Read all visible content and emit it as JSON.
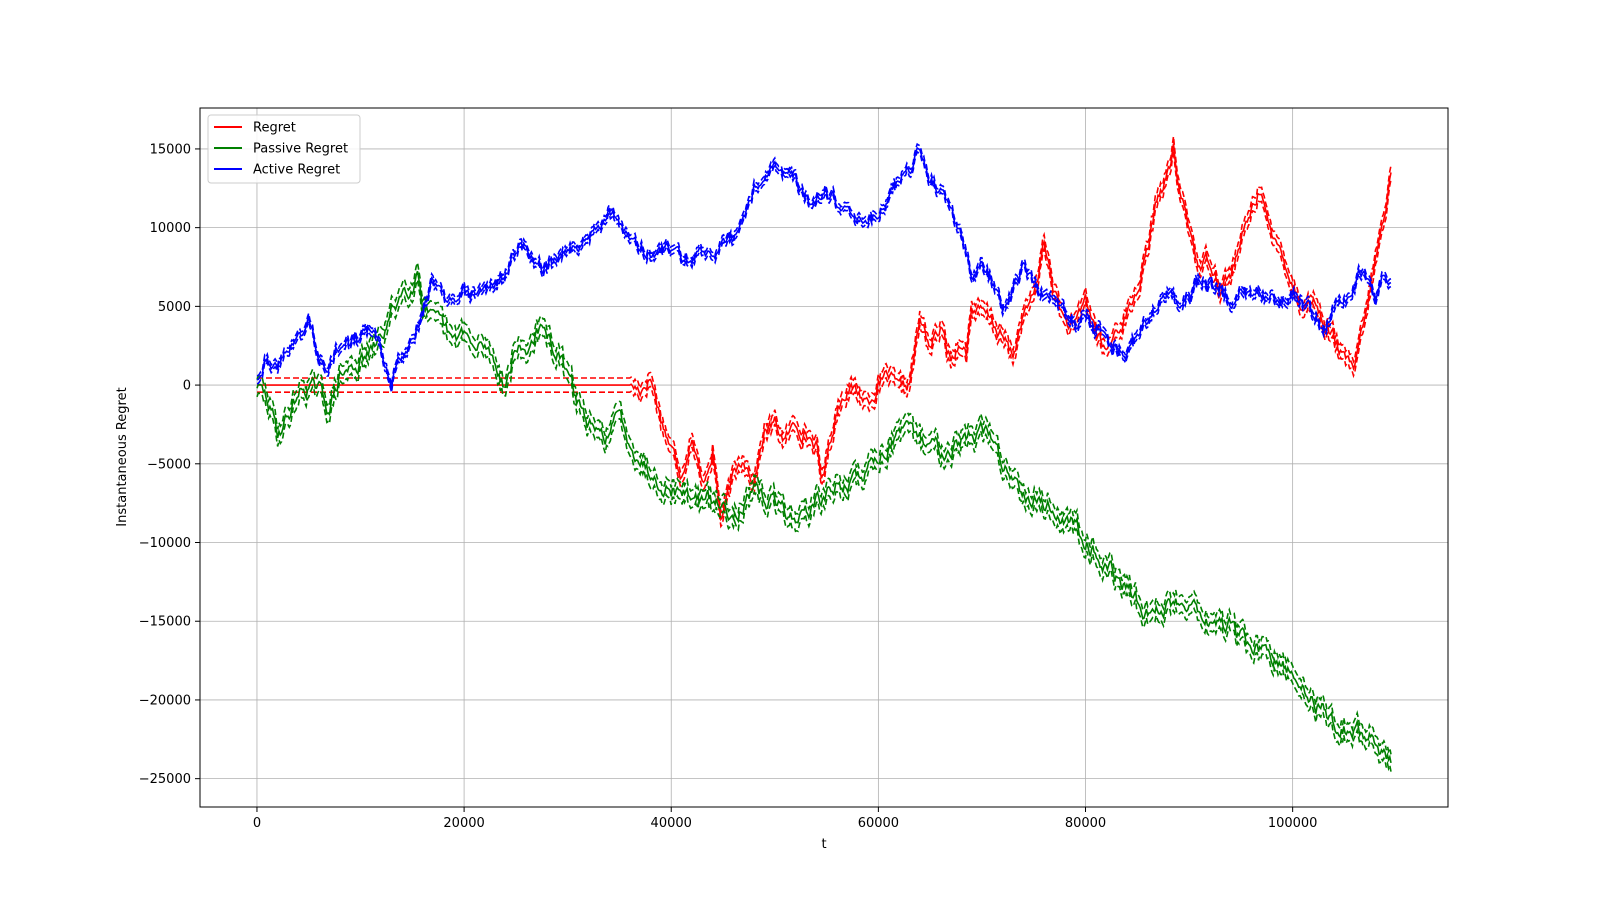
{
  "chart_data": {
    "type": "line",
    "title": "",
    "xlabel": "t",
    "ylabel": "Instantaneous Regret",
    "xlim": [
      -5500,
      115000
    ],
    "ylim": [
      -26800,
      17600
    ],
    "xticks": [
      0,
      20000,
      40000,
      60000,
      80000,
      100000
    ],
    "xtick_labels": [
      "0",
      "20000",
      "40000",
      "60000",
      "80000",
      "100000"
    ],
    "yticks": [
      15000,
      10000,
      5000,
      0,
      -5000,
      -10000,
      -15000,
      -20000,
      -25000
    ],
    "ytick_labels": [
      "15000",
      "10000",
      "5000",
      "0",
      "−5000",
      "−10000",
      "−15000",
      "−20000",
      "−25000"
    ],
    "grid": true,
    "legend_position": "top-left",
    "band_style": "dashed bands around each series",
    "series": [
      {
        "name": "Regret",
        "color": "#ff0000",
        "band_width": 450,
        "x": [
          0,
          2000,
          5000,
          10000,
          15000,
          20000,
          25000,
          30000,
          36000,
          37000,
          38000,
          39000,
          40000,
          41000,
          42000,
          43000,
          44000,
          44800,
          46000,
          47000,
          48000,
          49000,
          50000,
          51000,
          52000,
          53000,
          54000,
          54500,
          56000,
          57000,
          58000,
          59000,
          60000,
          61000,
          62000,
          63000,
          64000,
          65000,
          66000,
          67000,
          68000,
          68500,
          69000,
          70000,
          71000,
          72000,
          73000,
          74000,
          75000,
          76000,
          77000,
          78000,
          79000,
          80000,
          81000,
          82000,
          83000,
          84000,
          85000,
          86000,
          87000,
          88000,
          88500,
          89000,
          90000,
          91000,
          92000,
          93000,
          94000,
          95000,
          96000,
          97000,
          98000,
          99000,
          100000,
          101000,
          102000,
          103000,
          104000,
          105000,
          106000,
          107000,
          108000,
          109000,
          109500
        ],
        "values": [
          0,
          0,
          0,
          0,
          0,
          0,
          0,
          0,
          0,
          -300,
          600,
          -2000,
          -4000,
          -5500,
          -3000,
          -6500,
          -4000,
          -8500,
          -6000,
          -4500,
          -6000,
          -3000,
          -2500,
          -3500,
          -2500,
          -3000,
          -3800,
          -6200,
          -1500,
          0,
          -500,
          -1000,
          0,
          500,
          -500,
          0,
          4000,
          2500,
          3500,
          1500,
          3000,
          2000,
          5000,
          4500,
          4000,
          3000,
          1800,
          4500,
          5500,
          9000,
          6000,
          4000,
          3500,
          5500,
          3500,
          2000,
          3500,
          4500,
          6000,
          8500,
          12000,
          13500,
          14800,
          12500,
          10000,
          7500,
          8000,
          6500,
          7000,
          9000,
          11000,
          12800,
          9000,
          8500,
          6500,
          5000,
          5500,
          4000,
          3000,
          1500,
          1000,
          4000,
          8000,
          11000,
          13500
        ]
      },
      {
        "name": "Passive Regret",
        "color": "#008000",
        "band_width": 550,
        "x": [
          0,
          1000,
          2000,
          3000,
          4000,
          5000,
          6000,
          7000,
          8000,
          9000,
          10000,
          11000,
          12000,
          13000,
          14000,
          15000,
          15500,
          16000,
          17000,
          18000,
          19000,
          20000,
          21000,
          22000,
          23000,
          24000,
          25000,
          26000,
          27000,
          28000,
          29000,
          30000,
          31000,
          32000,
          33000,
          34000,
          35000,
          36000,
          37000,
          38000,
          39000,
          40000,
          42000,
          44000,
          46000,
          48000,
          50000,
          52000,
          54000,
          56000,
          58000,
          60000,
          62000,
          64000,
          66000,
          68000,
          70000,
          71000,
          72000,
          74000,
          76000,
          78000,
          80000,
          82000,
          84000,
          86000,
          88000,
          90000,
          92000,
          94000,
          96000,
          98000,
          100000,
          102000,
          104000,
          106000,
          108000,
          109500
        ],
        "values": [
          0,
          -1000,
          -3000,
          -2000,
          -500,
          0,
          -500,
          -1500,
          500,
          1000,
          1500,
          2000,
          3000,
          4500,
          6000,
          6500,
          7500,
          5500,
          4000,
          3500,
          2500,
          3500,
          2000,
          2500,
          1500,
          0,
          2500,
          2000,
          3500,
          3000,
          2000,
          500,
          -1000,
          -2500,
          -3500,
          -3000,
          -2000,
          -3500,
          -4500,
          -5500,
          -6000,
          -6500,
          -7000,
          -7500,
          -8000,
          -7000,
          -7500,
          -8500,
          -7500,
          -6500,
          -6000,
          -4500,
          -3000,
          -3500,
          -4000,
          -3500,
          -3000,
          -3500,
          -5000,
          -6500,
          -7500,
          -8500,
          -9500,
          -11500,
          -13000,
          -14500,
          -14000,
          -13500,
          -15000,
          -15500,
          -16500,
          -17500,
          -18500,
          -20000,
          -21500,
          -22000,
          -22500,
          -24000
        ]
      },
      {
        "name": "Active Regret",
        "color": "#0000ff",
        "band_width": 250,
        "x": [
          0,
          1000,
          2000,
          3000,
          4000,
          5000,
          6000,
          7000,
          8000,
          9000,
          10000,
          11000,
          12000,
          13000,
          14000,
          15000,
          16000,
          17000,
          18000,
          19000,
          20000,
          22000,
          24000,
          25000,
          26000,
          27000,
          28000,
          30000,
          32000,
          34000,
          35000,
          36000,
          37000,
          38000,
          40000,
          42000,
          44000,
          46000,
          47000,
          48000,
          49000,
          50000,
          51000,
          52000,
          53000,
          54000,
          55000,
          56000,
          57000,
          58000,
          59000,
          60000,
          61000,
          62000,
          63000,
          64000,
          64500,
          65000,
          66000,
          67000,
          68000,
          69000,
          70000,
          71000,
          72000,
          73000,
          74000,
          75000,
          76000,
          77000,
          78000,
          79000,
          80000,
          81000,
          82000,
          83000,
          84000,
          85000,
          86000,
          87000,
          88000,
          89000,
          90000,
          91000,
          92000,
          93000,
          94000,
          95000,
          96000,
          97000,
          98000,
          99000,
          100000,
          101000,
          102000,
          103000,
          104000,
          105000,
          106000,
          107000,
          108000,
          109000,
          109500
        ],
        "values": [
          500,
          2000,
          1000,
          2500,
          3000,
          4000,
          2000,
          1500,
          2500,
          2500,
          3000,
          3500,
          2000,
          500,
          2000,
          3000,
          4500,
          6500,
          5500,
          5000,
          5500,
          6000,
          7000,
          8500,
          9000,
          7500,
          7500,
          8500,
          9500,
          11000,
          10500,
          9500,
          8500,
          8500,
          8500,
          8000,
          8500,
          9000,
          10500,
          12500,
          13500,
          14000,
          13500,
          13000,
          12000,
          11500,
          12000,
          11500,
          10500,
          10500,
          10000,
          11000,
          12000,
          13000,
          13500,
          15000,
          14000,
          13000,
          12500,
          11000,
          9500,
          7000,
          7500,
          6500,
          5000,
          6000,
          7500,
          6500,
          6000,
          5500,
          4500,
          4000,
          4500,
          3500,
          3000,
          2500,
          2000,
          3000,
          4000,
          5000,
          6000,
          5000,
          5500,
          6500,
          6500,
          6500,
          5500,
          6000,
          5500,
          6000,
          5500,
          5500,
          6000,
          5000,
          4500,
          3500,
          5000,
          5500,
          6500,
          7500,
          6000,
          7000,
          6500
        ]
      }
    ]
  }
}
